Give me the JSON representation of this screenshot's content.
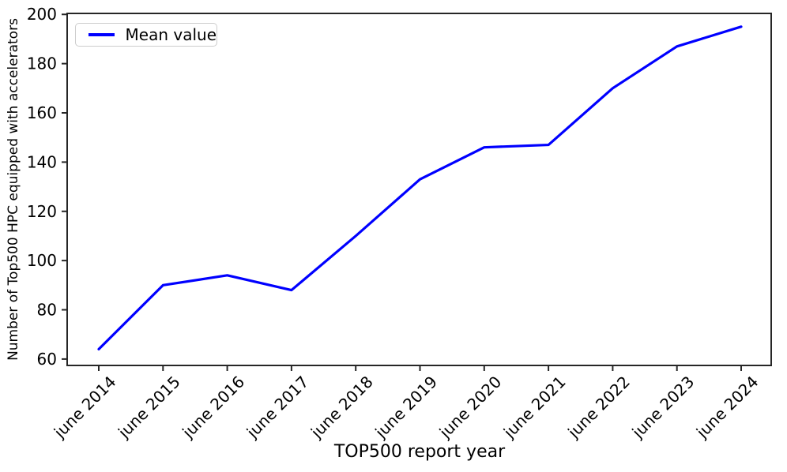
{
  "chart_data": {
    "type": "line",
    "title": "",
    "xlabel": "TOP500 report year",
    "ylabel": "Number of Top500 HPC equipped with accelerators",
    "legend_label": "Mean value",
    "legend_position": "upper left",
    "grid": false,
    "categories": [
      "june 2014",
      "june 2015",
      "june 2016",
      "june 2017",
      "june 2018",
      "june 2019",
      "june 2020",
      "june 2021",
      "june 2022",
      "june 2023",
      "june 2024"
    ],
    "series": [
      {
        "name": "Mean value",
        "color": "#0000ff",
        "values": [
          64,
          90,
          94,
          88,
          110,
          133,
          146,
          147,
          170,
          187,
          195
        ]
      }
    ],
    "yticks": [
      60,
      80,
      100,
      120,
      140,
      160,
      180,
      200
    ],
    "ylim": [
      57.4,
      200.4
    ]
  },
  "colors": {
    "line": "#0000ff",
    "axis": "#262626",
    "text": "#000000",
    "legend_border": "#cccccc"
  }
}
